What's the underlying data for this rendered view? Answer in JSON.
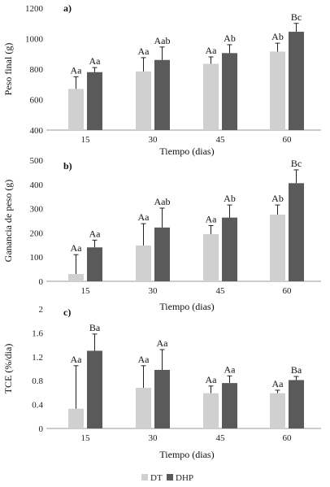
{
  "chart_data": [
    {
      "type": "bar",
      "panel_label": "a)",
      "categories": [
        "15",
        "30",
        "45",
        "60"
      ],
      "xlabel": "Tiempo (dias)",
      "ylabel": "Peso final (g)",
      "ylim": [
        400,
        1200
      ],
      "yticks": [
        400,
        600,
        800,
        1000,
        1200
      ],
      "series": [
        {
          "name": "DT",
          "color": "#d0d0d0",
          "values": [
            670,
            785,
            835,
            915
          ],
          "errors": [
            80,
            90,
            45,
            55
          ],
          "labels": [
            "Aa",
            "Aa",
            "Aa",
            "Ab"
          ]
        },
        {
          "name": "DHP",
          "color": "#5a5a5a",
          "values": [
            780,
            860,
            905,
            1045
          ],
          "errors": [
            30,
            85,
            55,
            55
          ],
          "labels": [
            "Aa",
            "Aab",
            "Ab",
            "Bc"
          ]
        }
      ]
    },
    {
      "type": "bar",
      "panel_label": "b)",
      "categories": [
        "15",
        "30",
        "45",
        "60"
      ],
      "xlabel": "Tiempo (dias)",
      "ylabel": "Ganancia de peso (g)",
      "ylim": [
        0,
        500
      ],
      "yticks": [
        0,
        100,
        200,
        300,
        400,
        500
      ],
      "series": [
        {
          "name": "DT",
          "color": "#d0d0d0",
          "values": [
            30,
            148,
            195,
            275
          ],
          "errors": [
            80,
            90,
            35,
            40
          ],
          "labels": [
            "Aa",
            "Aa",
            "Aa",
            "Ab"
          ]
        },
        {
          "name": "DHP",
          "color": "#5a5a5a",
          "values": [
            140,
            222,
            263,
            405
          ],
          "errors": [
            30,
            80,
            52,
            55
          ],
          "labels": [
            "Aa",
            "Aab",
            "Ab",
            "Bc"
          ]
        }
      ]
    },
    {
      "type": "bar",
      "panel_label": "c)",
      "categories": [
        "15",
        "30",
        "45",
        "60"
      ],
      "xlabel": "Tiempo (dias)",
      "ylabel": "TCE (%/dia)",
      "ylim": [
        0,
        2
      ],
      "yticks": [
        "0",
        "0.4",
        "0.8",
        "1.2",
        "1.6",
        "2"
      ],
      "series": [
        {
          "name": "DT",
          "color": "#d0d0d0",
          "values": [
            0.33,
            0.68,
            0.59,
            0.59
          ],
          "errors": [
            0.72,
            0.37,
            0.12,
            0.05
          ],
          "labels": [
            "Aa",
            "Aa",
            "Aa",
            "Aa"
          ]
        },
        {
          "name": "DHP",
          "color": "#5a5a5a",
          "values": [
            1.3,
            0.98,
            0.76,
            0.81
          ],
          "errors": [
            0.28,
            0.34,
            0.12,
            0.06
          ],
          "labels": [
            "Ba",
            "Aa",
            "Aa",
            "Ba"
          ]
        }
      ]
    }
  ],
  "legend": [
    {
      "name": "DT",
      "color": "#d0d0d0"
    },
    {
      "name": "DHP",
      "color": "#5a5a5a"
    }
  ]
}
